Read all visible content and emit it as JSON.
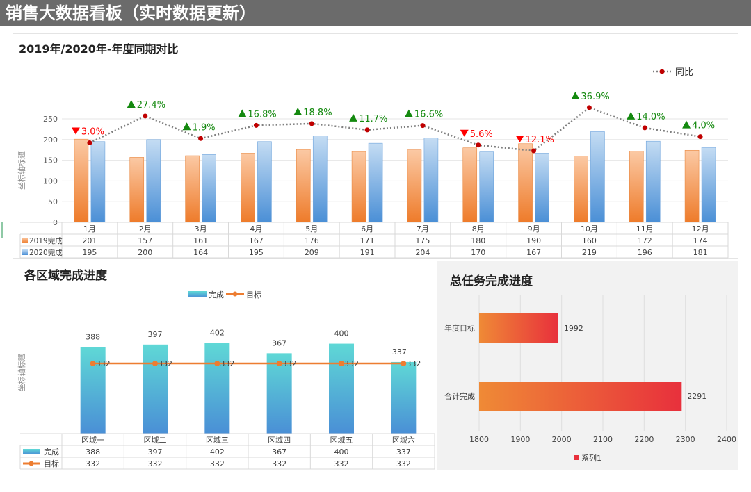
{
  "header": {
    "title": "销售大数据看板（实时数据更新）"
  },
  "colors": {
    "orange_top": "#fbc9a4",
    "orange_bottom": "#ee7b2a",
    "blue_top": "#c4dcf3",
    "blue_bottom": "#4a8fd6",
    "line": "#7f7f7f",
    "marker": "#c00000",
    "up": "#14890f",
    "down": "#ff0000",
    "cyan_top": "#5fd8d6",
    "cyan_bottom": "#4a8fd6",
    "target": "#ed7d31",
    "hbar_left": "#ef8a36",
    "hbar_right": "#e8303c"
  },
  "chart_data": [
    {
      "type": "bar",
      "title": "2019年/2020年-年度同期对比",
      "ylabel": "坐标轴标题",
      "ylim": [
        0,
        250
      ],
      "yticks": [
        0,
        50,
        100,
        150,
        200,
        250
      ],
      "categories": [
        "1月",
        "2月",
        "3月",
        "4月",
        "5月",
        "6月",
        "7月",
        "8月",
        "9月",
        "10月",
        "11月",
        "12月"
      ],
      "series": [
        {
          "name": "2019完成",
          "values": [
            201,
            157,
            161,
            167,
            176,
            171,
            175,
            180,
            190,
            160,
            172,
            174
          ]
        },
        {
          "name": "2020完成",
          "values": [
            195,
            200,
            164,
            195,
            209,
            191,
            204,
            170,
            167,
            219,
            196,
            181
          ]
        }
      ],
      "ratio_series": {
        "name": "同比",
        "labels": [
          "3.0%",
          "27.4%",
          "1.9%",
          "16.8%",
          "18.8%",
          "11.7%",
          "16.6%",
          "5.6%",
          "12.1%",
          "36.9%",
          "14.0%",
          "4.0%"
        ],
        "direction": [
          "down",
          "up",
          "up",
          "up",
          "up",
          "up",
          "up",
          "down",
          "down",
          "up",
          "up",
          "up"
        ],
        "values": [
          -3.0,
          27.4,
          1.9,
          16.8,
          18.8,
          11.7,
          16.6,
          -5.6,
          -12.1,
          36.9,
          14.0,
          4.0
        ]
      },
      "legend": "top-right",
      "grid": true,
      "data_table": true
    },
    {
      "type": "bar",
      "title": "各区域完成进度",
      "ylabel": "坐标轴标题",
      "categories": [
        "区域一",
        "区域二",
        "区域三",
        "区域四",
        "区域五",
        "区域六"
      ],
      "series": [
        {
          "name": "完成",
          "values": [
            388,
            397,
            402,
            367,
            400,
            337
          ]
        },
        {
          "name": "目标",
          "values": [
            332,
            332,
            332,
            332,
            332,
            332
          ]
        }
      ],
      "legend": "top",
      "data_table": true
    },
    {
      "type": "bar",
      "orientation": "horizontal",
      "title": "总任务完成进度",
      "categories": [
        "年度目标",
        "合计完成"
      ],
      "series": [
        {
          "name": "系列1",
          "values": [
            1992,
            2291
          ]
        }
      ],
      "xlim": [
        1800,
        2400
      ],
      "xticks": [
        1800,
        1900,
        2000,
        2100,
        2200,
        2300,
        2400
      ],
      "legend": "bottom",
      "grid": true
    }
  ]
}
